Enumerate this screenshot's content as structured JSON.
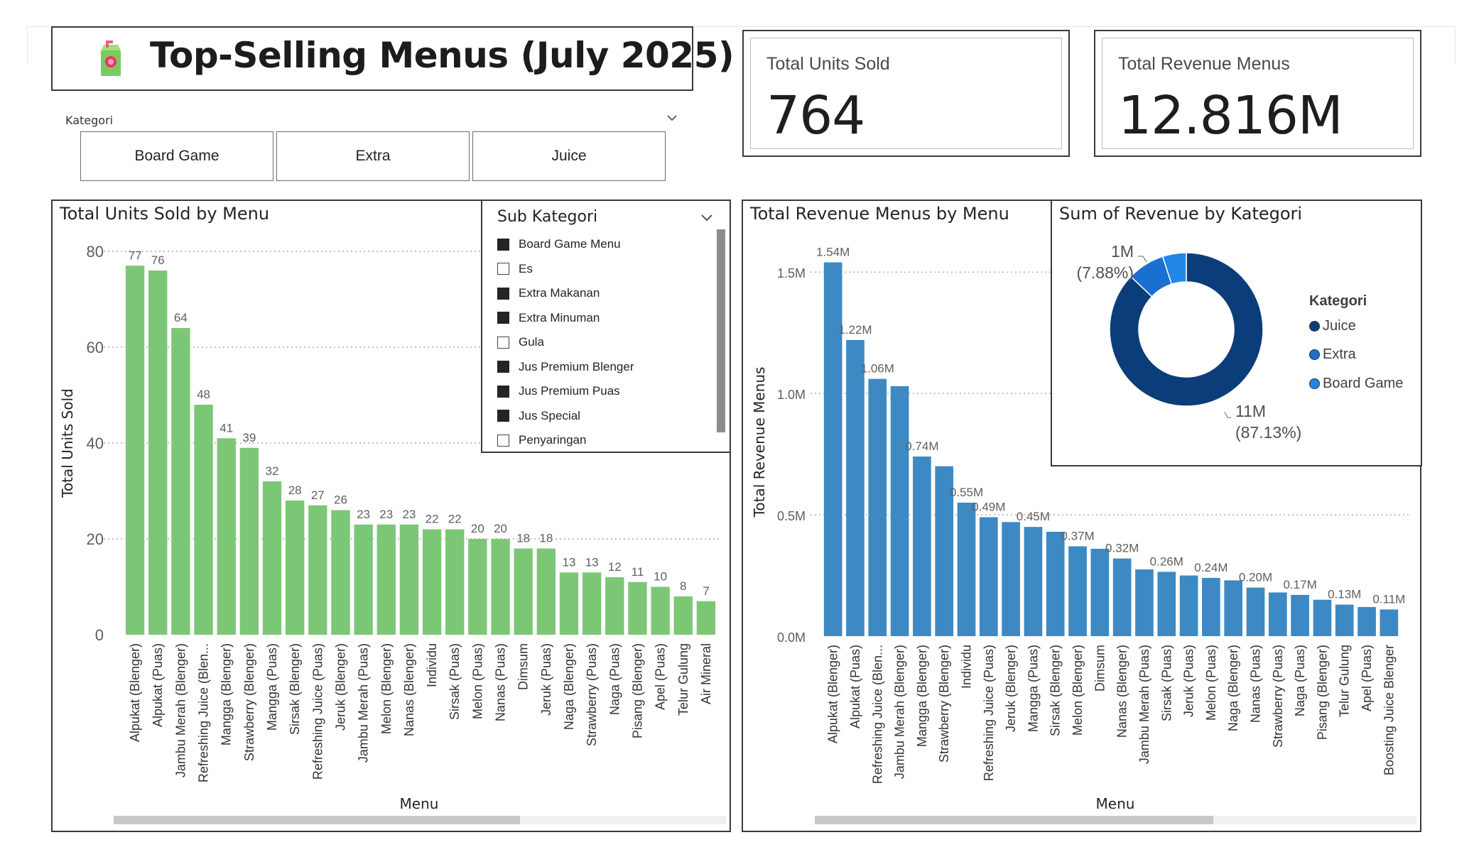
{
  "page": {
    "title": "Top-Selling Menus (July 2025)"
  },
  "slicer": {
    "label": "Kategori",
    "options": [
      "Board Game",
      "Extra",
      "Juice"
    ]
  },
  "cards": {
    "units": {
      "label": "Total Units Sold",
      "value": "764"
    },
    "revenue": {
      "label": "Total Revenue Menus",
      "value": "12.816M"
    }
  },
  "sub_kategori": {
    "title": "Sub Kategori",
    "items": [
      {
        "label": "Board Game Menu",
        "checked": true
      },
      {
        "label": "Es",
        "checked": false
      },
      {
        "label": "Extra Makanan",
        "checked": true
      },
      {
        "label": "Extra Minuman",
        "checked": true
      },
      {
        "label": "Gula",
        "checked": false
      },
      {
        "label": "Jus Premium Blenger",
        "checked": true
      },
      {
        "label": "Jus Premium Puas",
        "checked": true
      },
      {
        "label": "Jus Special",
        "checked": true
      },
      {
        "label": "Penyaringan",
        "checked": false
      }
    ]
  },
  "colors": {
    "units_bar": "#7cc776",
    "revenue_bar": "#3d89c4",
    "juice": "#0b3d7a",
    "extra": "#1a6fd0",
    "board_game": "#2186e8"
  },
  "chart_data": [
    {
      "type": "bar",
      "title": "Total Units Sold by Menu",
      "xlabel": "Menu",
      "ylabel": "Total Units Sold",
      "ylim": [
        0,
        80
      ],
      "yticks": [
        "0",
        "20",
        "40",
        "60",
        "80"
      ],
      "grid": true,
      "categories": [
        "Alpukat (Blenger)",
        "Alpukat (Puas)",
        "Jambu Merah (Blenger)",
        "Refreshing Juice (Blen...",
        "Mangga (Blenger)",
        "Strawberry (Blenger)",
        "Mangga (Puas)",
        "Sirsak (Blenger)",
        "Refreshing Juice (Puas)",
        "Jeruk (Blenger)",
        "Jambu Merah (Puas)",
        "Melon (Blenger)",
        "Nanas (Blenger)",
        "Individu",
        "Sirsak (Puas)",
        "Melon (Puas)",
        "Nanas (Puas)",
        "Dimsum",
        "Jeruk (Puas)",
        "Naga (Blenger)",
        "Strawberry (Puas)",
        "Naga (Puas)",
        "Pisang (Blenger)",
        "Apel (Puas)",
        "Telur Gulung",
        "Air Mineral"
      ],
      "values": [
        77,
        76,
        64,
        48,
        41,
        39,
        32,
        28,
        27,
        26,
        23,
        23,
        23,
        22,
        22,
        20,
        20,
        18,
        18,
        13,
        13,
        12,
        11,
        10,
        8,
        7
      ],
      "labels": [
        "77",
        "76",
        "64",
        "48",
        "41",
        "39",
        "32",
        "28",
        "27",
        "26",
        "23",
        "23",
        "23",
        "22",
        "22",
        "20",
        "20",
        "18",
        "18",
        "13",
        "13",
        "12",
        "11",
        "10",
        "8",
        "7"
      ]
    },
    {
      "type": "bar",
      "title": "Total Revenue Menus by Menu",
      "xlabel": "Menu",
      "ylabel": "Total Revenue Menus",
      "ylim": [
        0,
        1600000
      ],
      "yticks": [
        "0.0M",
        "0.5M",
        "1.0M",
        "1.5M"
      ],
      "grid": true,
      "categories": [
        "Alpukat (Blenger)",
        "Alpukat (Puas)",
        "Refreshing Juice (Blen...",
        "Jambu Merah (Blenger)",
        "Mangga (Blenger)",
        "Strawberry (Blenger)",
        "Individu",
        "Refreshing Juice (Puas)",
        "Jeruk (Blenger)",
        "Mangga (Puas)",
        "Sirsak (Blenger)",
        "Melon (Blenger)",
        "Dimsum",
        "Nanas (Blenger)",
        "Jambu Merah (Puas)",
        "Sirsak (Puas)",
        "Jeruk (Puas)",
        "Melon (Puas)",
        "Naga (Blenger)",
        "Nanas (Puas)",
        "Strawberry (Puas)",
        "Naga (Puas)",
        "Pisang (Blenger)",
        "Telur Gulung",
        "Apel (Puas)",
        "Boosting Juice Blenger"
      ],
      "values": [
        1540000,
        1220000,
        1060000,
        1030000,
        740000,
        700000,
        550000,
        490000,
        470000,
        450000,
        430000,
        370000,
        360000,
        320000,
        275000,
        265000,
        250000,
        240000,
        230000,
        200000,
        180000,
        170000,
        150000,
        130000,
        120000,
        110000
      ],
      "labels": [
        "1.54M",
        "1.22M",
        "1.06M",
        "",
        "0.74M",
        "",
        "0.55M",
        "0.49M",
        "",
        "0.45M",
        "",
        "0.37M",
        "",
        "0.32M",
        "",
        "0.26M",
        "",
        "0.24M",
        "",
        "0.20M",
        "",
        "0.17M",
        "",
        "0.13M",
        "",
        "0.11M"
      ]
    },
    {
      "type": "pie",
      "title": "Sum of Revenue by Kategori",
      "legend_title": "Kategori",
      "legend_position": "right",
      "categories": [
        "Juice",
        "Extra",
        "Board Game"
      ],
      "values": [
        87.13,
        7.88,
        4.99
      ],
      "slice_labels": [
        {
          "value": "11M",
          "percent": "(87.13%)"
        },
        {
          "value": "1M",
          "percent": "(7.88%)"
        }
      ]
    }
  ]
}
